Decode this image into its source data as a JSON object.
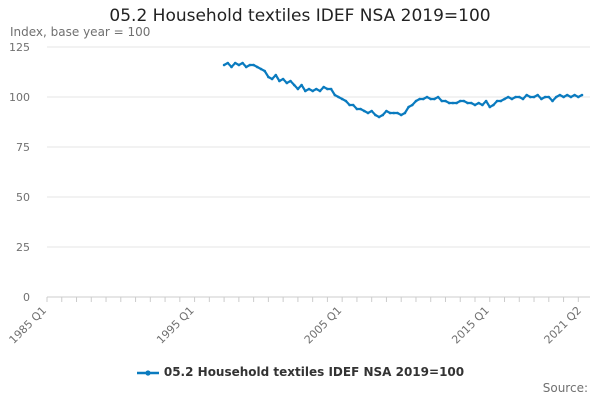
{
  "chart_data": {
    "type": "line",
    "title": "05.2 Household textiles IDEF NSA 2019=100",
    "ylabel": "Index, base year = 100",
    "xlabel": "",
    "ylim": [
      0,
      125
    ],
    "y_ticks": [
      "0",
      "25",
      "50",
      "75",
      "100",
      "125"
    ],
    "x_ticks": [
      "1985 Q1",
      "1995 Q1",
      "2005 Q1",
      "2015 Q1",
      "2021 Q2"
    ],
    "x_range": [
      "1985 Q1",
      "2021 Q2"
    ],
    "grid": true,
    "legend": "bottom",
    "series": [
      {
        "name": "05.2 Household textiles IDEF NSA 2019=100",
        "color": "#0a7bbf",
        "x": [
          "1997 Q1",
          "1997 Q2",
          "1997 Q3",
          "1997 Q4",
          "1998 Q1",
          "1998 Q2",
          "1998 Q3",
          "1998 Q4",
          "1999 Q1",
          "1999 Q2",
          "1999 Q3",
          "1999 Q4",
          "2000 Q1",
          "2000 Q2",
          "2000 Q3",
          "2000 Q4",
          "2001 Q1",
          "2001 Q2",
          "2001 Q3",
          "2001 Q4",
          "2002 Q1",
          "2002 Q2",
          "2002 Q3",
          "2002 Q4",
          "2003 Q1",
          "2003 Q2",
          "2003 Q3",
          "2003 Q4",
          "2004 Q1",
          "2004 Q2",
          "2004 Q3",
          "2004 Q4",
          "2005 Q1",
          "2005 Q2",
          "2005 Q3",
          "2005 Q4",
          "2006 Q1",
          "2006 Q2",
          "2006 Q3",
          "2006 Q4",
          "2007 Q1",
          "2007 Q2",
          "2007 Q3",
          "2007 Q4",
          "2008 Q1",
          "2008 Q2",
          "2008 Q3",
          "2008 Q4",
          "2009 Q1",
          "2009 Q2",
          "2009 Q3",
          "2009 Q4",
          "2010 Q1",
          "2010 Q2",
          "2010 Q3",
          "2010 Q4",
          "2011 Q1",
          "2011 Q2",
          "2011 Q3",
          "2011 Q4",
          "2012 Q1",
          "2012 Q2",
          "2012 Q3",
          "2012 Q4",
          "2013 Q1",
          "2013 Q2",
          "2013 Q3",
          "2013 Q4",
          "2014 Q1",
          "2014 Q2",
          "2014 Q3",
          "2014 Q4",
          "2015 Q1",
          "2015 Q2",
          "2015 Q3",
          "2015 Q4",
          "2016 Q1",
          "2016 Q2",
          "2016 Q3",
          "2016 Q4",
          "2017 Q1",
          "2017 Q2",
          "2017 Q3",
          "2017 Q4",
          "2018 Q1",
          "2018 Q2",
          "2018 Q3",
          "2018 Q4",
          "2019 Q1",
          "2019 Q2",
          "2019 Q3",
          "2019 Q4",
          "2020 Q1",
          "2020 Q2",
          "2020 Q3",
          "2020 Q4",
          "2021 Q1",
          "2021 Q2"
        ],
        "values": [
          116,
          117,
          115,
          117,
          116,
          117,
          115,
          116,
          116,
          115,
          114,
          113,
          110,
          109,
          111,
          108,
          109,
          107,
          108,
          106,
          104,
          106,
          103,
          104,
          103,
          104,
          103,
          105,
          104,
          104,
          101,
          100,
          99,
          98,
          96,
          96,
          94,
          94,
          93,
          92,
          93,
          91,
          90,
          91,
          93,
          92,
          92,
          92,
          91,
          92,
          95,
          96,
          98,
          99,
          99,
          100,
          99,
          99,
          100,
          98,
          98,
          97,
          97,
          97,
          98,
          98,
          97,
          97,
          96,
          97,
          96,
          98,
          95,
          96,
          98,
          98,
          99,
          100,
          99,
          100,
          100,
          99,
          101,
          100,
          100,
          101,
          99,
          100,
          100,
          98,
          100,
          101,
          100,
          101,
          100,
          101,
          100,
          101
        ]
      }
    ]
  },
  "source_label": "Source:"
}
